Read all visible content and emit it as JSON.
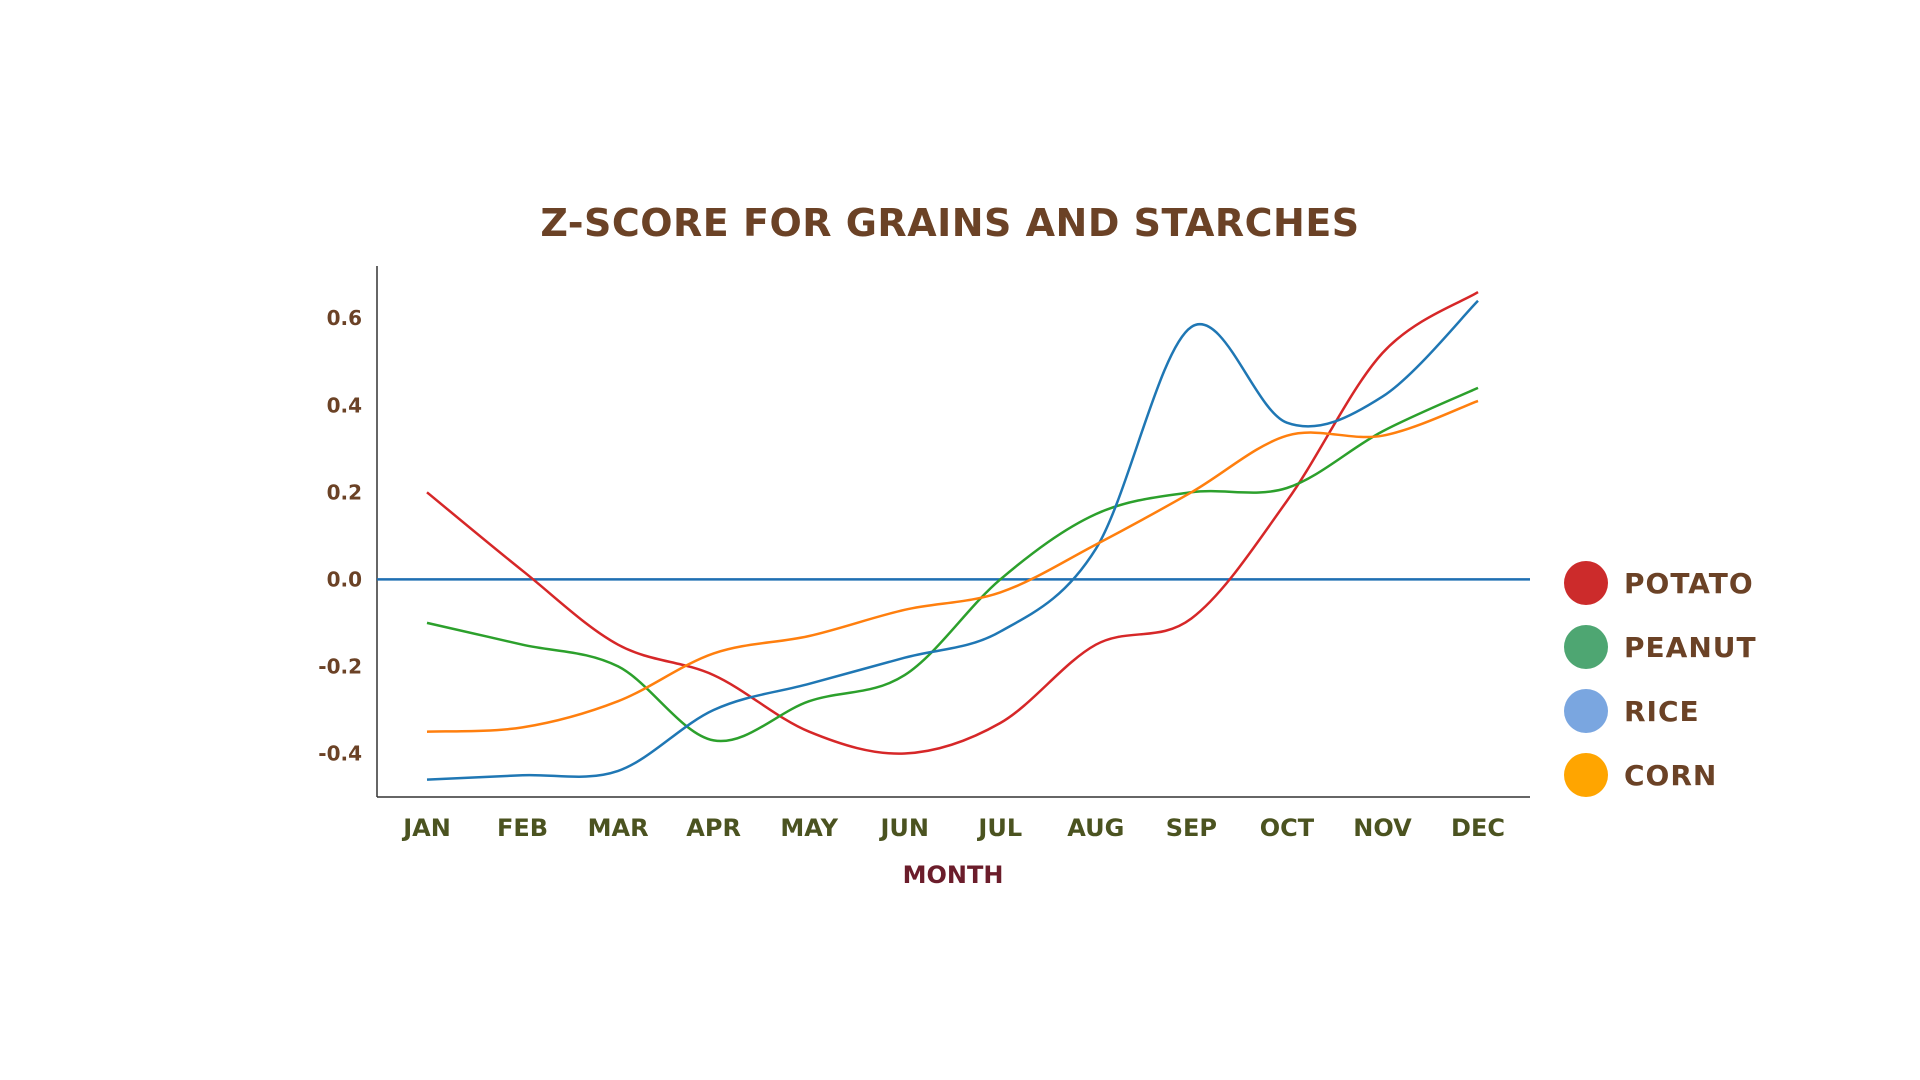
{
  "chart_data": {
    "type": "line",
    "title": "Z-SCORE FOR GRAINS AND STARCHES",
    "xlabel": "MONTH",
    "ylabel": "",
    "categories": [
      "JAN",
      "FEB",
      "MAR",
      "APR",
      "MAY",
      "JUN",
      "JUL",
      "AUG",
      "SEP",
      "OCT",
      "NOV",
      "DEC"
    ],
    "yticks": [
      "0.6",
      "0.4",
      "0.2",
      "0.0",
      "-0.2",
      "-0.4"
    ],
    "ylim": [
      -0.5,
      0.72
    ],
    "zero_line": true,
    "grid": false,
    "legend_position": "right",
    "series": [
      {
        "name": "POTATO",
        "line_color": "#d62728",
        "marker_color": "#cc2b2b",
        "values": [
          0.2,
          0.02,
          -0.15,
          -0.22,
          -0.35,
          -0.4,
          -0.33,
          -0.15,
          -0.09,
          0.18,
          0.52,
          0.66
        ]
      },
      {
        "name": "PEANUT",
        "line_color": "#2ca02c",
        "marker_color": "#4ea672",
        "values": [
          -0.1,
          -0.15,
          -0.2,
          -0.37,
          -0.28,
          -0.22,
          0.0,
          0.15,
          0.2,
          0.21,
          0.34,
          0.44
        ]
      },
      {
        "name": "RICE",
        "line_color": "#1f77b4",
        "marker_color": "#7aa6e0",
        "values": [
          -0.46,
          -0.45,
          -0.44,
          -0.3,
          -0.24,
          -0.18,
          -0.12,
          0.07,
          0.58,
          0.36,
          0.42,
          0.64
        ]
      },
      {
        "name": "CORN",
        "line_color": "#ff7f0e",
        "marker_color": "#ffa500",
        "values": [
          -0.35,
          -0.34,
          -0.28,
          -0.17,
          -0.13,
          -0.07,
          -0.03,
          0.08,
          0.2,
          0.33,
          0.33,
          0.41
        ]
      }
    ]
  }
}
